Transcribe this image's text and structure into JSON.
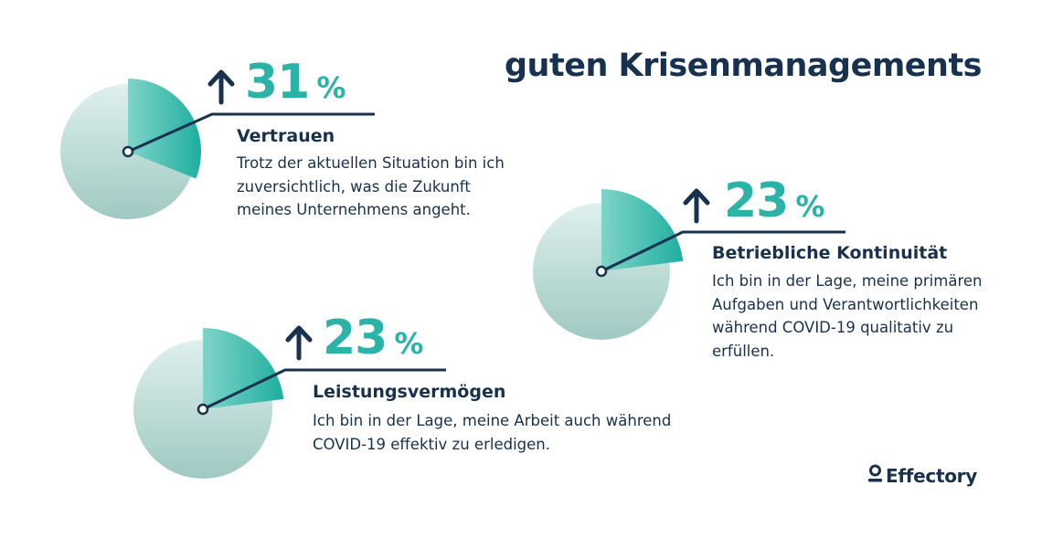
{
  "title": "guten Krisenmanagements",
  "brand": {
    "name": "Effectory",
    "icon": "person-icon"
  },
  "colors": {
    "accent": "#2ab3a6",
    "accent_light": "#7fd4c8",
    "pie_base": "#d5ebe8",
    "pie_base_dark": "#a3cbc4",
    "dark": "#17314e"
  },
  "chart_data": [
    {
      "type": "pie",
      "highlight_value": 31,
      "unit": "%",
      "trend": "up",
      "label": "Vertrauen",
      "description": [
        "Trotz der aktuellen Situation bin ich",
        "zuversichtlich, was die Zukunft",
        "meines Unternehmens angeht."
      ]
    },
    {
      "type": "pie",
      "highlight_value": 23,
      "unit": "%",
      "trend": "up",
      "label": "Betriebliche Kontinuität",
      "description": [
        "Ich bin in der Lage, meine primären",
        "Aufgaben und Verantwortlichkeiten",
        "während COVID-19 qualitativ zu",
        "erfüllen."
      ]
    },
    {
      "type": "pie",
      "highlight_value": 23,
      "unit": "%",
      "trend": "up",
      "label": "Leistungsvermögen",
      "description": [
        "Ich bin in der Lage, meine Arbeit auch während",
        "COVID-19 effektiv zu erledigen."
      ]
    }
  ]
}
